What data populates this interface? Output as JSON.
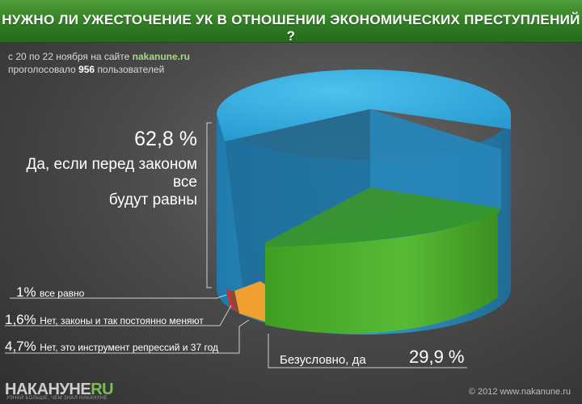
{
  "title": "НУЖНО ЛИ УЖЕСТОЧЕНИЕ УК В ОТНОШЕНИИ ЭКОНОМИЧЕСКИХ ПРЕСТУПЛЕНИЙ ?",
  "source": {
    "prefix": "с 20 по 22 ноября на сайте",
    "site": "nakanune.ru",
    "voted_prefix": "проголосовало",
    "count": "956",
    "voted_suffix": "пользователей"
  },
  "chart_data": {
    "type": "pie",
    "title": "НУЖНО ЛИ УЖЕСТОЧЕНИЕ УК В ОТНОШЕНИИ ЭКОНОМИЧЕСКИХ ПРЕСТУПЛЕНИЙ ?",
    "slices": [
      {
        "label": "Да, если перед законом все будут равны",
        "label_lines": [
          "Да, если перед законом все",
          "будут равны"
        ],
        "value": 62.8,
        "value_label": "62,8 %",
        "color": "#2aa9dd"
      },
      {
        "label": "Безусловно, да",
        "value": 29.9,
        "value_label": "29,9 %",
        "color": "#4fb52e"
      },
      {
        "label": "Нет, это инструмент репрессий и 37 год",
        "value": 4.7,
        "value_label": "4,7%",
        "color": "#f0a030"
      },
      {
        "label": "Нет, законы и так постоянно меняют",
        "value": 1.6,
        "value_label": "1,6%",
        "color": "#8a4a3a"
      },
      {
        "label": "все равно",
        "value": 1,
        "value_label": "1%",
        "color": "#d0302a"
      }
    ]
  },
  "footer": {
    "logo_main": "НАКАНУНЕ",
    "logo_suffix": "RU",
    "tagline": "УЗНАЙ БОЛЬШЕ, ЧЕМ ЗНАЛ НАКАНУНЕ",
    "copyright": "© 2012 www.nakanune.ru"
  }
}
